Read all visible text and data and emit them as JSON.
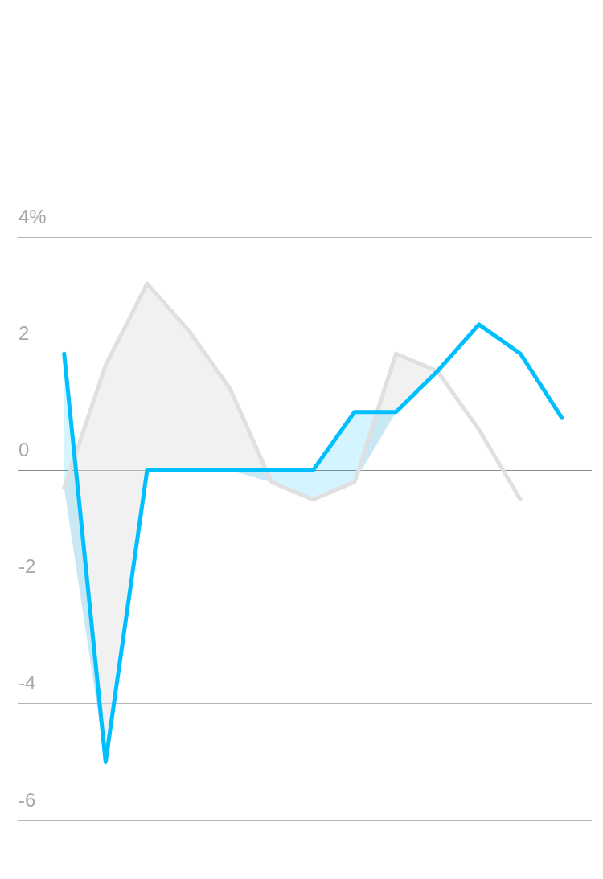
{
  "chart_data": {
    "type": "line",
    "categories": [
      null,
      null,
      null,
      null,
      null,
      null,
      null,
      null,
      null,
      null,
      null,
      null,
      null
    ],
    "series": [
      {
        "color": "#e0e0e0",
        "values": [
          -0.3,
          1.8,
          3.2,
          2.4,
          1.4,
          -0.2,
          -0.5,
          -0.2,
          2.0,
          1.7,
          0.7,
          -0.5,
          null
        ],
        "lower": [
          -0.3,
          -5.0,
          0,
          0,
          0,
          -0.2,
          null,
          -0.2,
          1.0,
          1.7,
          null,
          null,
          null
        ],
        "upper": [
          -0.3,
          1.8,
          3.2,
          2.4,
          1.4,
          -0.2,
          null,
          -0.2,
          2.0,
          1.7,
          null,
          null,
          null
        ]
      },
      {
        "color": "#00bfff",
        "values": [
          2.0,
          -5.0,
          0,
          0,
          0,
          0,
          0,
          1.0,
          1.0,
          1.7,
          2.5,
          2.0,
          0.9
        ],
        "lower": [
          -0.3,
          -5.0,
          null,
          null,
          0,
          -0.2,
          -0.5,
          -0.2,
          1.0,
          null,
          null,
          null,
          null
        ],
        "upper": [
          2.0,
          -5.0,
          null,
          null,
          0,
          0,
          0,
          1.0,
          1.0,
          null,
          null,
          null,
          null
        ]
      }
    ],
    "ylim": [
      -6,
      4
    ],
    "yticks": [
      -6,
      -4,
      -2,
      0,
      2,
      {
        "value": 4,
        "label": "4%"
      }
    ],
    "grid": "y",
    "marker": "none",
    "line_style": "solid",
    "legend": false
  }
}
